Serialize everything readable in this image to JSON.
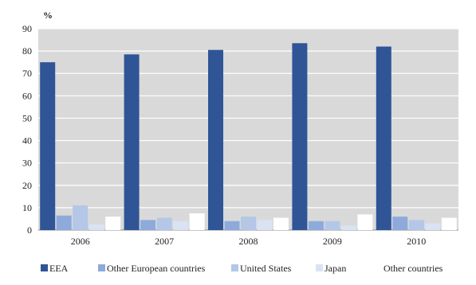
{
  "chart_data": {
    "type": "bar",
    "title": "",
    "unit_label": "%",
    "xlabel": "",
    "ylabel": "",
    "ylim": [
      0,
      90
    ],
    "yticks": [
      0,
      10,
      20,
      30,
      40,
      50,
      60,
      70,
      80,
      90
    ],
    "grid": true,
    "legend_position": "bottom",
    "categories": [
      "2006",
      "2007",
      "2008",
      "2009",
      "2010"
    ],
    "series": [
      {
        "name": "EEA",
        "color": "#2f5597",
        "values": [
          75,
          78.5,
          80.5,
          83.5,
          82
        ]
      },
      {
        "name": "Other European countries",
        "color": "#8eaadb",
        "values": [
          6.5,
          4.5,
          4,
          4,
          6
        ]
      },
      {
        "name": "United States",
        "color": "#b4c7e7",
        "values": [
          11,
          5.5,
          6,
          4,
          4.5
        ]
      },
      {
        "name": "Japan",
        "color": "#dae3f3",
        "values": [
          2.5,
          4,
          4.5,
          2,
          3
        ]
      },
      {
        "name": "Other countries",
        "color": "#ffffff",
        "values": [
          6,
          7.5,
          5.5,
          7,
          5.5
        ]
      }
    ],
    "plot_background": "#d9d9d9",
    "gridline_color": "#ffffff"
  }
}
